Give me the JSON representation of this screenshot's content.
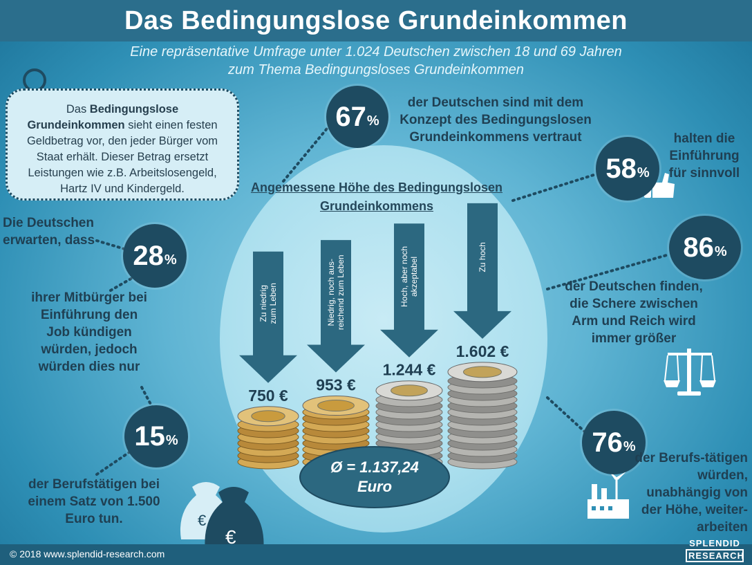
{
  "header": {
    "title": "Das Bedingungslose Grundeinkommen"
  },
  "subtitle": {
    "line1": "Eine repräsentative Umfrage unter 1.024 Deutschen zwischen 18 und 69 Jahren",
    "line2": "zum Thema Bedingungsloses  Grundeinkommen"
  },
  "infobox": {
    "pre": "Das ",
    "bold": "Bedingungslose Grundeinkommen",
    "post": " sieht einen festen Geldbetrag vor, den jeder Bürger vom Staat erhält. Dieser Betrag ersetzt Leistungen wie z.B. Arbeitslosengeld, Hartz IV und Kindergeld."
  },
  "stats": {
    "s67": {
      "num": "67",
      "pct": "%",
      "text": "der Deutschen sind mit dem Konzept des Bedingungslosen Grundeinkommens vertraut"
    },
    "s58": {
      "num": "58",
      "pct": "%",
      "text": "halten die Einführung für sinnvoll"
    },
    "s86": {
      "num": "86",
      "pct": "%",
      "text": "der Deutschen finden, die Schere zwischen Arm und Reich wird immer größer"
    },
    "s76": {
      "num": "76",
      "pct": "%",
      "text": "der Berufs-tätigen würden, unabhängig von der Höhe, weiter-arbeiten"
    },
    "s28": {
      "num": "28",
      "pct": "%",
      "text_before": "Die Deutschen erwarten, dass",
      "text_after": "ihrer Mitbürger bei Einführung den Job kündigen würden, jedoch würden dies nur"
    },
    "s15": {
      "num": "15",
      "pct": "%",
      "text": "der Berufstätigen bei einem Satz von 1.500 Euro tun."
    }
  },
  "chart_data": {
    "type": "bar",
    "title": "Angemessene Höhe des Bedingungslosen Grundeinkommens",
    "categories": [
      "Zu niedrig zum Leben",
      "Niedrig, noch ausreichend zum Leben",
      "Hoch, aber noch akzeptabel",
      "Zu hoch"
    ],
    "category_lines": [
      [
        "Zu niedrig",
        "zum Leben"
      ],
      [
        "Niedrig, noch aus-",
        "reichend zum Leben"
      ],
      [
        "Hoch, aber noch",
        "akzeptabel"
      ],
      [
        "Zu hoch"
      ]
    ],
    "values": [
      750,
      953,
      1244,
      1602
    ],
    "value_labels": [
      "750 €",
      "953 €",
      "1.244 €",
      "1.602 €"
    ],
    "average_label": [
      "Ø = 1.137,24",
      "Euro"
    ],
    "unit": "€"
  },
  "footer": {
    "copyright": "© 2018  www.splendid-research.com",
    "logo_line1": "SPLENDID",
    "logo_line2": "RESEARCH"
  },
  "colors": {
    "dark": "#1e4b61",
    "header": "#2b6e8c",
    "arrow": "#2c6880",
    "gold": "#c9a24a",
    "silver": "#a9a9a6"
  }
}
